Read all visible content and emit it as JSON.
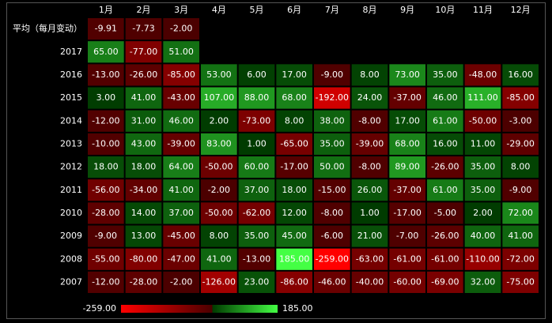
{
  "chart_data": {
    "type": "heatmap",
    "x_categories": [
      "1月",
      "2月",
      "3月",
      "4月",
      "5月",
      "6月",
      "7月",
      "8月",
      "9月",
      "10月",
      "11月",
      "12月"
    ],
    "y_categories": [
      "平均（每月变动）",
      "2017",
      "2016",
      "2015",
      "2014",
      "2013",
      "2012",
      "2011",
      "2010",
      "2009",
      "2008",
      "2007"
    ],
    "values": [
      [
        -9.91,
        -7.73,
        -2
      ],
      [
        65,
        -77,
        51
      ],
      [
        -13,
        -26,
        -85,
        53,
        6,
        17,
        -9,
        8,
        73,
        35,
        -48,
        16
      ],
      [
        3,
        41,
        -43,
        107,
        88,
        68,
        -192,
        24,
        -37,
        46,
        111,
        -85
      ],
      [
        -12,
        31,
        46,
        2,
        -73,
        8,
        38,
        -8,
        17,
        61,
        -50,
        -3
      ],
      [
        -10,
        43,
        -39,
        83,
        1,
        -65,
        35,
        -39,
        68,
        16,
        11,
        -29
      ],
      [
        18,
        18,
        64,
        -50,
        60,
        -17,
        50,
        -8,
        89,
        -26,
        35,
        8
      ],
      [
        -56,
        -34,
        41,
        -2,
        37,
        18,
        -15,
        26,
        -37,
        61,
        35,
        -9
      ],
      [
        -28,
        14,
        37,
        -50,
        -62,
        12,
        -8,
        1,
        -17,
        -5,
        2,
        72
      ],
      [
        -9,
        13,
        -45,
        8,
        35,
        45,
        -6,
        21,
        -7,
        -26,
        40,
        41
      ],
      [
        -55,
        -80,
        -47,
        41,
        -13,
        185,
        -259,
        -63,
        -61,
        -61,
        -110,
        -72
      ],
      [
        -12,
        -28,
        -2,
        -126,
        23,
        -86,
        -46,
        -40,
        -60,
        -69,
        32,
        -75
      ]
    ],
    "value_labels": [
      [
        "-9.91",
        "-7.73",
        "-2.00"
      ],
      [
        "65.00",
        "-77.00",
        "51.00"
      ],
      [
        "-13.00",
        "-26.00",
        "-85.00",
        "53.00",
        "6.00",
        "17.00",
        "-9.00",
        "8.00",
        "73.00",
        "35.00",
        "-48.00",
        "16.00"
      ],
      [
        "3.00",
        "41.00",
        "-43.00",
        "107.00",
        "88.00",
        "68.00",
        "-192.00",
        "24.00",
        "-37.00",
        "46.00",
        "111.00",
        "-85.00"
      ],
      [
        "-12.00",
        "31.00",
        "46.00",
        "2.00",
        "-73.00",
        "8.00",
        "38.00",
        "-8.00",
        "17.00",
        "61.00",
        "-50.00",
        "-3.00"
      ],
      [
        "-10.00",
        "43.00",
        "-39.00",
        "83.00",
        "1.00",
        "-65.00",
        "35.00",
        "-39.00",
        "68.00",
        "16.00",
        "11.00",
        "-29.00"
      ],
      [
        "18.00",
        "18.00",
        "64.00",
        "-50.00",
        "60.00",
        "-17.00",
        "50.00",
        "-8.00",
        "89.00",
        "-26.00",
        "35.00",
        "8.00"
      ],
      [
        "-56.00",
        "-34.00",
        "41.00",
        "-2.00",
        "37.00",
        "18.00",
        "-15.00",
        "26.00",
        "-37.00",
        "61.00",
        "35.00",
        "-9.00"
      ],
      [
        "-28.00",
        "14.00",
        "37.00",
        "-50.00",
        "-62.00",
        "12.00",
        "-8.00",
        "1.00",
        "-17.00",
        "-5.00",
        "2.00",
        "72.00"
      ],
      [
        "-9.00",
        "13.00",
        "-45.00",
        "8.00",
        "35.00",
        "45.00",
        "-6.00",
        "21.00",
        "-7.00",
        "-26.00",
        "40.00",
        "41.00"
      ],
      [
        "-55.00",
        "-80.00",
        "-47.00",
        "41.00",
        "-13.00",
        "185.00",
        "-259.00",
        "-63.00",
        "-61.00",
        "-61.00",
        "-110.00",
        "-72.00"
      ],
      [
        "-12.00",
        "-28.00",
        "-2.00",
        "-126.00",
        "23.00",
        "-86.00",
        "-46.00",
        "-40.00",
        "-60.00",
        "-69.00",
        "32.00",
        "-75.00"
      ]
    ],
    "colorbar": {
      "min": {
        "value": -259,
        "label": "-259.00"
      },
      "max": {
        "value": 185,
        "label": "185.00"
      },
      "colors": [
        "#ff0000",
        "#4a0000",
        "#003a00",
        "#44ff44"
      ]
    }
  }
}
